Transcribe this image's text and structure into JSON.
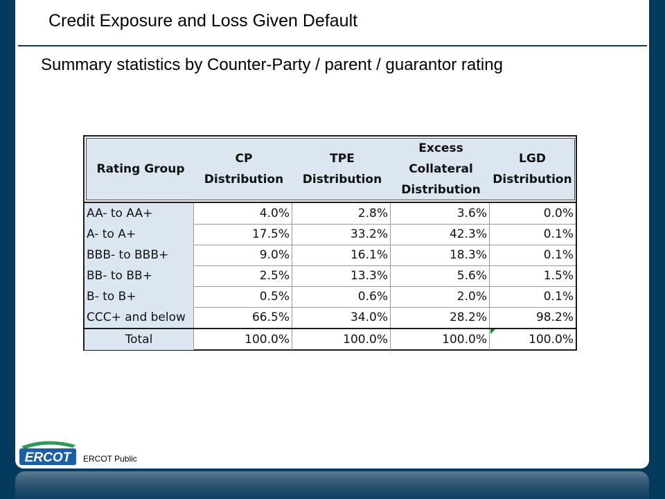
{
  "slide": {
    "title": "Credit Exposure and Loss Given Default",
    "subtitle": "Summary statistics by Counter-Party / parent / guarantor rating",
    "footer": "ERCOT Public",
    "logo_text": "ERCOT"
  },
  "table": {
    "headers": [
      [
        "Rating Group"
      ],
      [
        "CP",
        "Distribution"
      ],
      [
        "TPE",
        "Distribution"
      ],
      [
        "Excess",
        "Collateral",
        "Distribution"
      ],
      [
        "LGD",
        "Distribution"
      ]
    ],
    "rows": [
      {
        "label": "AA- to AA+",
        "cp": "4.0%",
        "tpe": "2.8%",
        "excess": "3.6%",
        "lgd": "0.0%"
      },
      {
        "label": "A- to A+",
        "cp": "17.5%",
        "tpe": "33.2%",
        "excess": "42.3%",
        "lgd": "0.1%"
      },
      {
        "label": "BBB- to BBB+",
        "cp": "9.0%",
        "tpe": "16.1%",
        "excess": "18.3%",
        "lgd": "0.1%"
      },
      {
        "label": "BB- to BB+",
        "cp": "2.5%",
        "tpe": "13.3%",
        "excess": "5.6%",
        "lgd": "1.5%"
      },
      {
        "label": "B- to B+",
        "cp": "0.5%",
        "tpe": "0.6%",
        "excess": "2.0%",
        "lgd": "0.1%"
      },
      {
        "label": "CCC+ and below",
        "cp": "66.5%",
        "tpe": "34.0%",
        "excess": "28.2%",
        "lgd": "98.2%"
      }
    ],
    "total": {
      "label": "Total",
      "cp": "100.0%",
      "tpe": "100.0%",
      "excess": "100.0%",
      "lgd": "100.0%"
    }
  },
  "colors": {
    "frame": "#033a5e",
    "header_fill": "#dce6f1",
    "logo_blue": "#1b5fa8",
    "logo_green": "#2e9a57"
  }
}
